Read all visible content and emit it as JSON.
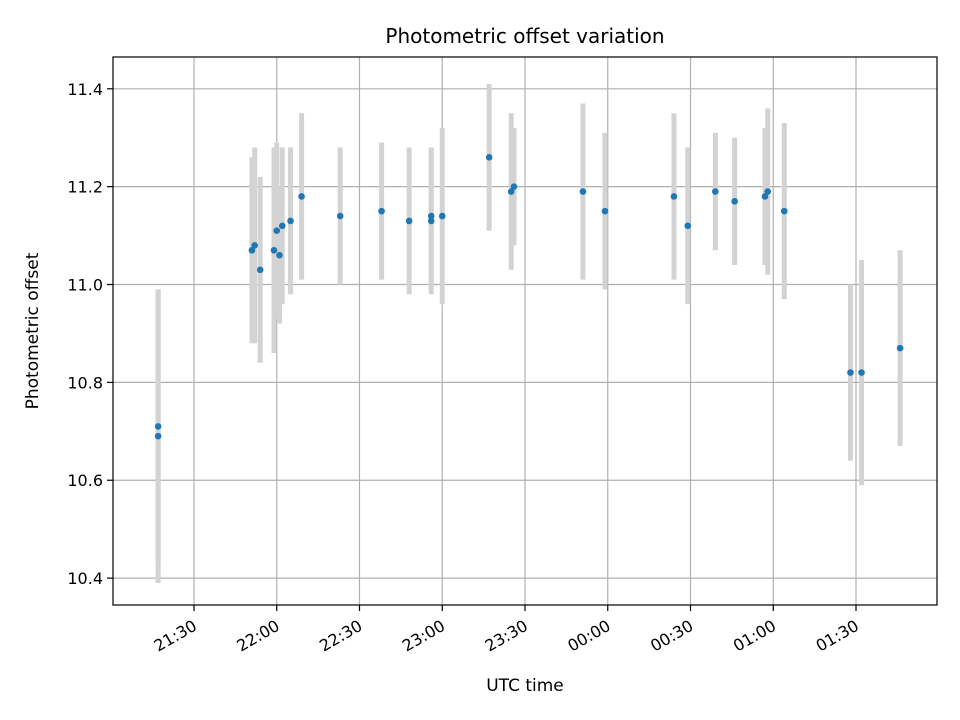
{
  "chart_data": {
    "type": "scatter",
    "title": "Photometric offset variation",
    "xlabel": "UTC time",
    "ylabel": "Photometric offset",
    "x_tick_labels": [
      "21:30",
      "22:00",
      "22:30",
      "23:00",
      "23:30",
      "00:00",
      "00:30",
      "01:00",
      "01:30"
    ],
    "y_tick_labels": [
      "10.4",
      "10.6",
      "10.8",
      "11.0",
      "11.2",
      "11.4"
    ],
    "ylim": [
      10.345,
      11.465
    ],
    "grid": true,
    "legend": "none",
    "colors": {
      "points": "#1f77b4",
      "errorbars": "#d3d3d3",
      "grid": "#b0b0b0"
    },
    "points": [
      {
        "t": "21:17",
        "y": 10.69,
        "err": 0.3
      },
      {
        "t": "21:17",
        "y": 10.71,
        "err": 0.28
      },
      {
        "t": "21:51",
        "y": 11.07,
        "err": 0.19
      },
      {
        "t": "21:52",
        "y": 11.08,
        "err": 0.2
      },
      {
        "t": "21:54",
        "y": 11.03,
        "err": 0.19
      },
      {
        "t": "21:59",
        "y": 11.07,
        "err": 0.21
      },
      {
        "t": "22:00",
        "y": 11.11,
        "err": 0.18
      },
      {
        "t": "22:01",
        "y": 11.06,
        "err": 0.14
      },
      {
        "t": "22:02",
        "y": 11.12,
        "err": 0.16
      },
      {
        "t": "22:05",
        "y": 11.13,
        "err": 0.15
      },
      {
        "t": "22:09",
        "y": 11.18,
        "err": 0.17
      },
      {
        "t": "22:23",
        "y": 11.14,
        "err": 0.14
      },
      {
        "t": "22:38",
        "y": 11.15,
        "err": 0.14
      },
      {
        "t": "22:48",
        "y": 11.13,
        "err": 0.15
      },
      {
        "t": "22:56",
        "y": 11.14,
        "err": 0.14
      },
      {
        "t": "22:56",
        "y": 11.13,
        "err": 0.15
      },
      {
        "t": "23:00",
        "y": 11.14,
        "err": 0.18
      },
      {
        "t": "23:17",
        "y": 11.26,
        "err": 0.15
      },
      {
        "t": "23:25",
        "y": 11.19,
        "err": 0.16
      },
      {
        "t": "23:26",
        "y": 11.2,
        "err": 0.12
      },
      {
        "t": "23:51",
        "y": 11.19,
        "err": 0.18
      },
      {
        "t": "23:59",
        "y": 11.15,
        "err": 0.16
      },
      {
        "t": "00:24",
        "y": 11.18,
        "err": 0.17
      },
      {
        "t": "00:29",
        "y": 11.12,
        "err": 0.16
      },
      {
        "t": "00:39",
        "y": 11.19,
        "err": 0.12
      },
      {
        "t": "00:46",
        "y": 11.17,
        "err": 0.13
      },
      {
        "t": "00:57",
        "y": 11.18,
        "err": 0.14
      },
      {
        "t": "00:58",
        "y": 11.19,
        "err": 0.17
      },
      {
        "t": "01:04",
        "y": 11.15,
        "err": 0.18
      },
      {
        "t": "01:28",
        "y": 10.82,
        "err": 0.18
      },
      {
        "t": "01:32",
        "y": 10.82,
        "err": 0.23
      },
      {
        "t": "01:46",
        "y": 10.87,
        "err": 0.2
      }
    ]
  }
}
